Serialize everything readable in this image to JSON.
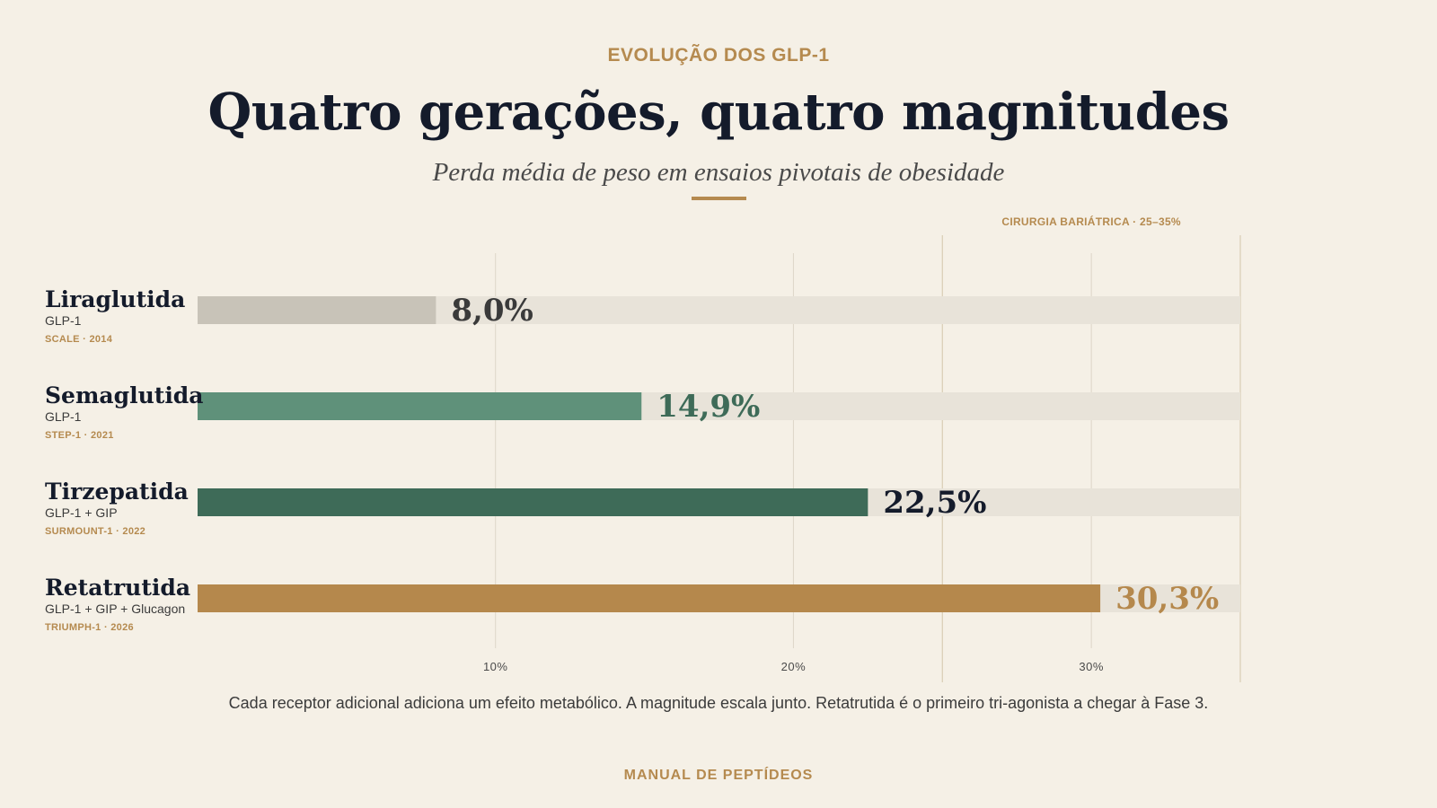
{
  "header": {
    "eyebrow": "EVOLUÇÃO DOS GLP-1",
    "title": "Quatro gerações, quatro magnitudes",
    "subtitle": "Perda média de peso em ensaios pivotais de obesidade"
  },
  "chart_data": {
    "type": "bar",
    "orientation": "horizontal",
    "categories": [
      "Liraglutida",
      "Semaglutida",
      "Tirzepatida",
      "Retatrutida"
    ],
    "values": [
      8.0,
      14.9,
      22.5,
      30.3
    ],
    "value_labels": [
      "8,0%",
      "14,9%",
      "22,5%",
      "30,3%"
    ],
    "subtitles": [
      "GLP-1",
      "GLP-1",
      "GLP-1 + GIP",
      "GLP-1 + GIP + Glucagon"
    ],
    "trials": [
      "SCALE · 2014",
      "STEP-1 · 2021",
      "SURMOUNT-1 · 2022",
      "TRIUMPH-1 · 2026"
    ],
    "colors": [
      "#c8c3b8",
      "#5f917a",
      "#3e6b58",
      "#b5884c"
    ],
    "value_label_colors": [
      "#3a3a3a",
      "#3e6b58",
      "#141b2b",
      "#b5884c"
    ],
    "track_color": "#e8e3d9",
    "grid": true,
    "x_ticks": [
      10,
      20,
      30
    ],
    "x_tick_labels": [
      "10%",
      "20%",
      "30%"
    ],
    "xlim": [
      0,
      35
    ],
    "reference_band": {
      "label": "CIRURGIA BARIÁTRICA · 25–35%",
      "from": 25,
      "to": 35
    }
  },
  "footnote": "Cada receptor adicional adiciona um efeito metabólico. A magnitude escala junto. Retatrutida é o primeiro tri-agonista a chegar à Fase 3.",
  "footer": "MANUAL  DE  PEPTÍDEOS"
}
